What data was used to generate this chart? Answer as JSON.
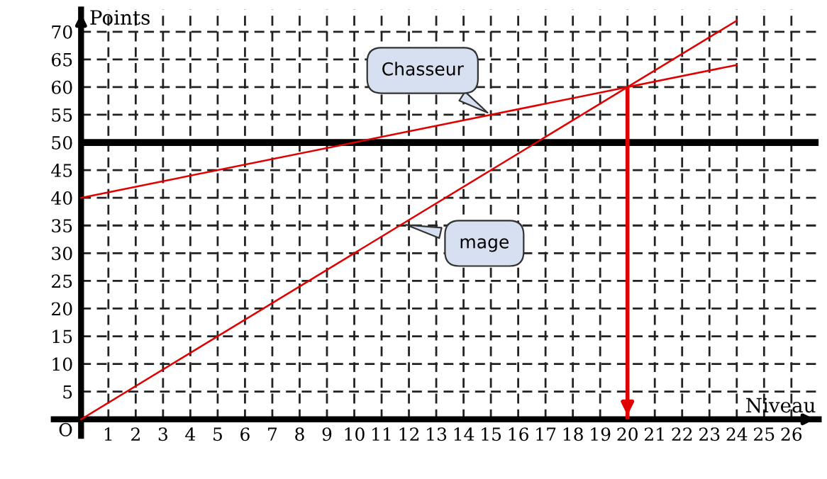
{
  "chart_data": {
    "type": "line",
    "xlabel": "Niveau",
    "ylabel": "Points",
    "xlim": [
      -1,
      27
    ],
    "ylim": [
      -3,
      74
    ],
    "xticks": [
      1,
      2,
      3,
      4,
      5,
      6,
      7,
      8,
      9,
      10,
      11,
      12,
      13,
      14,
      15,
      16,
      17,
      18,
      19,
      20,
      21,
      22,
      23,
      24,
      25,
      26
    ],
    "yticks": [
      5,
      10,
      15,
      20,
      25,
      30,
      35,
      40,
      45,
      50,
      55,
      60,
      65,
      70
    ],
    "grid": true,
    "x": [
      0,
      24
    ],
    "series": [
      {
        "name": "mage",
        "color": "#e00000",
        "values": [
          0,
          72
        ]
      },
      {
        "name": "Chasseur",
        "color": "#e00000",
        "values": [
          40,
          64
        ]
      }
    ],
    "annotations": [
      "O"
    ],
    "ref_lines": [
      {
        "axis": "y",
        "value": 50,
        "color": "#000000"
      },
      {
        "axis": "x",
        "value": 20,
        "color": "#e00000"
      }
    ]
  }
}
